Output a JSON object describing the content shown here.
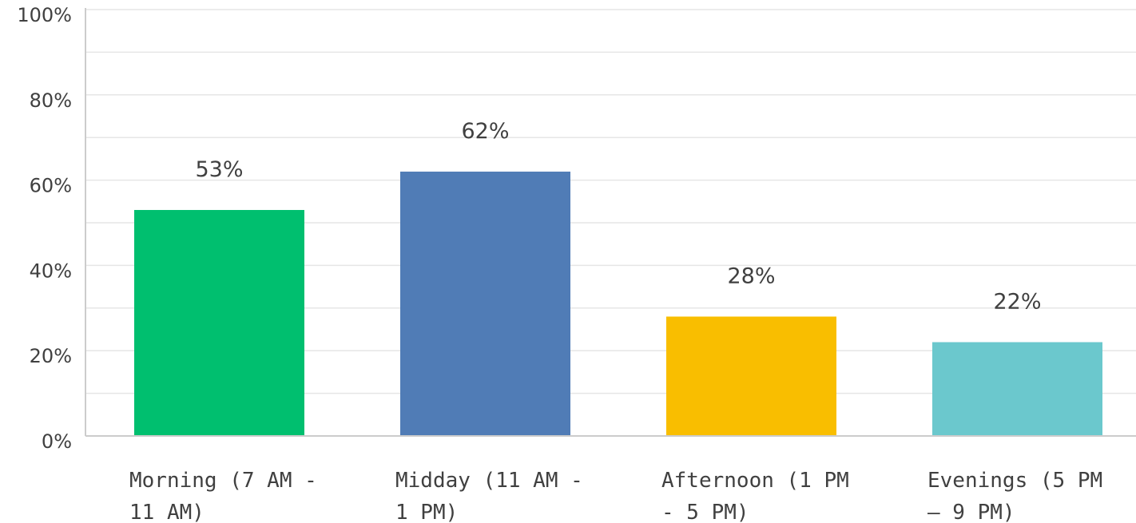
{
  "chart_data": {
    "type": "bar",
    "title": "",
    "xlabel": "",
    "ylabel": "",
    "ylim": [
      0,
      100
    ],
    "y_ticks": [
      0,
      20,
      40,
      60,
      80,
      100
    ],
    "y_tick_labels": [
      "0%",
      "20%",
      "40%",
      "60%",
      "80%",
      "100%"
    ],
    "grid": true,
    "categories": [
      "Morning (7 AM - 11 AM)",
      "Midday (11 AM - 1 PM)",
      "Afternoon (1 PM - 5 PM)",
      "Evenings (5 PM – 9 PM)"
    ],
    "category_label_lines": [
      [
        "Morning (7 AM -",
        "11 AM)"
      ],
      [
        "Midday (11 AM -",
        "1 PM)"
      ],
      [
        "Afternoon (1 PM",
        "- 5 PM)"
      ],
      [
        "Evenings (5 PM",
        "– 9 PM)"
      ]
    ],
    "values": [
      53,
      62,
      28,
      22
    ],
    "value_labels": [
      "53%",
      "62%",
      "28%",
      "22%"
    ],
    "colors": [
      "#00bf6f",
      "#507cb6",
      "#f9be00",
      "#6bc8cd"
    ]
  }
}
